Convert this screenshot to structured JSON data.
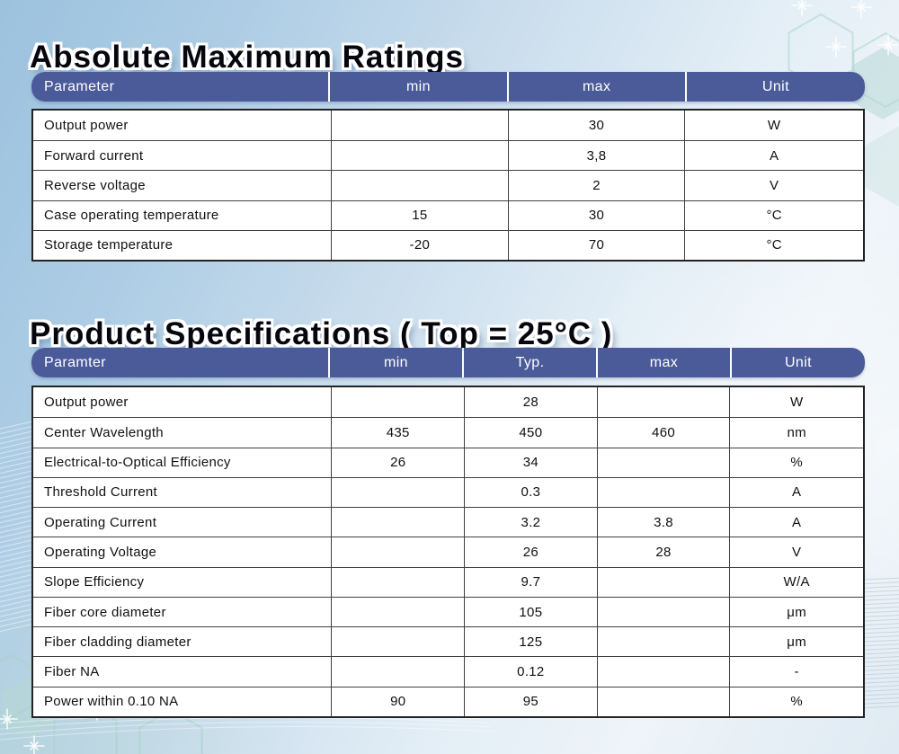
{
  "colors": {
    "header_bg": "#4b5b9a",
    "header_text": "#ffffff",
    "table_bg": "#ffffff",
    "border_dark": "#232323",
    "grid_line": "#3f3f3f",
    "text": "#101010",
    "decor_teal": "#a9d3cb",
    "decor_fill": "#b7d7d5",
    "bg_top_left": "#9cc2de",
    "bg_light": "#eef4f9"
  },
  "sections": [
    {
      "title": "Absolute Maximum Ratings",
      "columns": [
        "Parameter",
        "min",
        "max",
        "Unit"
      ],
      "rows": [
        [
          "Output power",
          "",
          "30",
          "W"
        ],
        [
          "Forward current",
          "",
          "3,8",
          "A"
        ],
        [
          "Reverse voltage",
          "",
          "2",
          "V"
        ],
        [
          "Case operating temperature",
          "15",
          "30",
          "°C"
        ],
        [
          "Storage temperature",
          "-20",
          "70",
          "°C"
        ]
      ]
    },
    {
      "title": "Product Specifications ( Top = 25°C )",
      "columns": [
        "Paramter",
        "min",
        "Typ.",
        "max",
        "Unit"
      ],
      "rows": [
        [
          "Output power",
          "",
          "28",
          "",
          "W"
        ],
        [
          "Center Wavelength",
          "435",
          "450",
          "460",
          "nm"
        ],
        [
          "Electrical-to-Optical Efficiency",
          "26",
          "34",
          "",
          "%"
        ],
        [
          "Threshold Current",
          "",
          "0.3",
          "",
          "A"
        ],
        [
          "Operating Current",
          "",
          "3.2",
          "3.8",
          "A"
        ],
        [
          "Operating Voltage",
          "",
          "26",
          "28",
          "V"
        ],
        [
          "Slope Efficiency",
          "",
          "9.7",
          "",
          "W/A"
        ],
        [
          "Fiber core diameter",
          "",
          "105",
          "",
          "μm"
        ],
        [
          "Fiber cladding diameter",
          "",
          "125",
          "",
          "μm"
        ],
        [
          "Fiber NA",
          "",
          "0.12",
          "",
          "-"
        ],
        [
          "Power within 0.10 NA",
          "90",
          "95",
          "",
          "%"
        ]
      ]
    }
  ]
}
